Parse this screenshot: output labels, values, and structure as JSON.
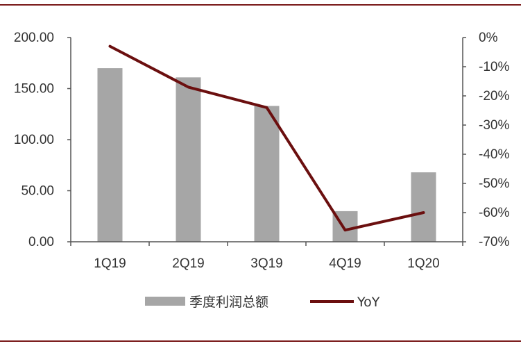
{
  "chart_data": {
    "type": "bar+line",
    "categories": [
      "1Q19",
      "2Q19",
      "3Q19",
      "4Q19",
      "1Q20"
    ],
    "series": [
      {
        "name": "季度利润总额",
        "kind": "bar",
        "axis": "left",
        "values": [
          170,
          161,
          133,
          30,
          68
        ]
      },
      {
        "name": "YoY",
        "kind": "line",
        "axis": "right",
        "values": [
          -3,
          -17,
          -24,
          -66,
          -60
        ]
      }
    ],
    "left_axis": {
      "ylim": [
        0,
        200
      ],
      "ticks": [
        0,
        50,
        100,
        150,
        200
      ],
      "tick_labels": [
        "0.00",
        "50.00",
        "100.00",
        "150.00",
        "200.00"
      ]
    },
    "right_axis": {
      "ylim": [
        -70,
        0
      ],
      "ticks": [
        0,
        -10,
        -20,
        -30,
        -40,
        -50,
        -60,
        -70
      ],
      "tick_labels": [
        "0%",
        "-10%",
        "-20%",
        "-30%",
        "-40%",
        "-50%",
        "-60%",
        "-70%"
      ]
    },
    "grid": false,
    "legend_position": "bottom",
    "colors": {
      "bar": "#a6a6a6",
      "line": "#6b0f0f",
      "frame": "#7a1a1a",
      "axis": "#555555"
    }
  }
}
